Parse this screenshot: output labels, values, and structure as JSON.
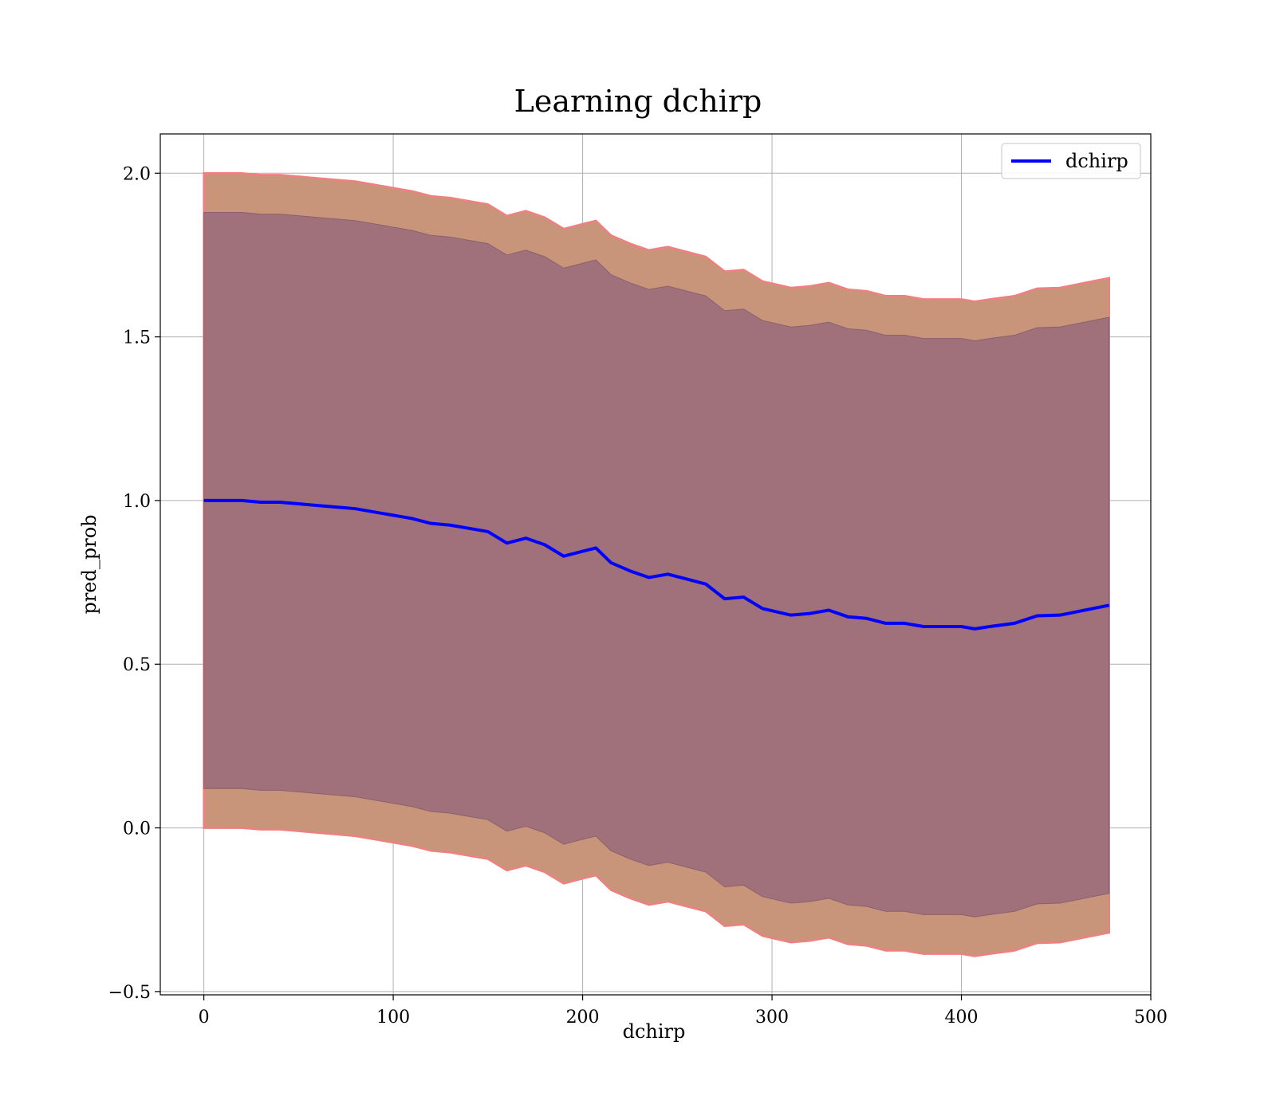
{
  "chart_data": {
    "type": "line",
    "title": "Learning dchirp",
    "xlabel": "dchirp",
    "ylabel": "pred_prob",
    "xlim": [
      -23,
      500
    ],
    "ylim": [
      -0.51,
      2.12
    ],
    "xticks": [
      0,
      100,
      200,
      300,
      400,
      500
    ],
    "yticks": [
      -0.5,
      0.0,
      0.5,
      1.0,
      1.5,
      2.0
    ],
    "xtick_labels": [
      "0",
      "100",
      "200",
      "300",
      "400",
      "500"
    ],
    "ytick_labels": [
      "−0.5",
      "0.0",
      "0.5",
      "1.0",
      "1.5",
      "2.0"
    ],
    "grid": true,
    "legend": {
      "position": "top-right",
      "entries": [
        "dchirp"
      ]
    },
    "colors": {
      "line": "#0000ff",
      "band_outer": "#c8957a",
      "band_outer_edge": "#f08080",
      "band_inner": "#a0717a"
    },
    "x": [
      0,
      10,
      20,
      30,
      40,
      50,
      60,
      70,
      80,
      90,
      100,
      110,
      120,
      130,
      140,
      150,
      160,
      170,
      180,
      190,
      200,
      207,
      215,
      225,
      235,
      245,
      255,
      265,
      275,
      285,
      295,
      310,
      320,
      330,
      340,
      350,
      360,
      370,
      380,
      390,
      400,
      407,
      415,
      428,
      440,
      452,
      478
    ],
    "series": [
      {
        "name": "dchirp",
        "values": [
          1.0,
          1.0,
          1.0,
          0.995,
          0.995,
          0.99,
          0.985,
          0.98,
          0.975,
          0.965,
          0.955,
          0.945,
          0.93,
          0.925,
          0.915,
          0.905,
          0.87,
          0.885,
          0.865,
          0.83,
          0.845,
          0.855,
          0.81,
          0.785,
          0.765,
          0.775,
          0.76,
          0.745,
          0.7,
          0.705,
          0.67,
          0.65,
          0.655,
          0.665,
          0.645,
          0.64,
          0.625,
          0.625,
          0.615,
          0.615,
          0.615,
          0.608,
          0.615,
          0.625,
          0.648,
          0.65,
          0.68
        ]
      }
    ],
    "band_outer": {
      "upper": [
        2.0,
        2.0,
        2.0,
        1.995,
        1.995,
        1.99,
        1.985,
        1.98,
        1.975,
        1.965,
        1.955,
        1.945,
        1.93,
        1.925,
        1.915,
        1.905,
        1.87,
        1.885,
        1.865,
        1.83,
        1.845,
        1.855,
        1.81,
        1.785,
        1.765,
        1.775,
        1.76,
        1.745,
        1.7,
        1.705,
        1.67,
        1.65,
        1.655,
        1.665,
        1.645,
        1.64,
        1.625,
        1.625,
        1.615,
        1.615,
        1.615,
        1.608,
        1.615,
        1.625,
        1.648,
        1.65,
        1.68
      ],
      "lower": [
        0.0,
        0.0,
        0.0,
        -0.005,
        -0.005,
        -0.01,
        -0.015,
        -0.02,
        -0.025,
        -0.035,
        -0.045,
        -0.055,
        -0.07,
        -0.075,
        -0.085,
        -0.095,
        -0.13,
        -0.115,
        -0.135,
        -0.17,
        -0.155,
        -0.145,
        -0.19,
        -0.215,
        -0.235,
        -0.225,
        -0.24,
        -0.255,
        -0.3,
        -0.295,
        -0.33,
        -0.35,
        -0.345,
        -0.335,
        -0.355,
        -0.36,
        -0.375,
        -0.375,
        -0.385,
        -0.385,
        -0.385,
        -0.392,
        -0.385,
        -0.375,
        -0.352,
        -0.35,
        -0.32
      ]
    },
    "band_inner": {
      "upper": [
        1.88,
        1.88,
        1.88,
        1.875,
        1.875,
        1.87,
        1.865,
        1.86,
        1.855,
        1.845,
        1.835,
        1.825,
        1.81,
        1.805,
        1.795,
        1.785,
        1.75,
        1.765,
        1.745,
        1.71,
        1.725,
        1.735,
        1.69,
        1.665,
        1.645,
        1.655,
        1.64,
        1.625,
        1.58,
        1.585,
        1.55,
        1.53,
        1.535,
        1.545,
        1.525,
        1.52,
        1.505,
        1.505,
        1.495,
        1.495,
        1.495,
        1.488,
        1.495,
        1.505,
        1.528,
        1.53,
        1.56
      ],
      "lower": [
        0.12,
        0.12,
        0.12,
        0.115,
        0.115,
        0.11,
        0.105,
        0.1,
        0.095,
        0.085,
        0.075,
        0.065,
        0.05,
        0.045,
        0.035,
        0.025,
        -0.01,
        0.005,
        -0.015,
        -0.05,
        -0.035,
        -0.025,
        -0.07,
        -0.095,
        -0.115,
        -0.105,
        -0.12,
        -0.135,
        -0.18,
        -0.175,
        -0.21,
        -0.23,
        -0.225,
        -0.215,
        -0.235,
        -0.24,
        -0.255,
        -0.255,
        -0.265,
        -0.265,
        -0.265,
        -0.272,
        -0.265,
        -0.255,
        -0.232,
        -0.23,
        -0.2
      ]
    }
  }
}
